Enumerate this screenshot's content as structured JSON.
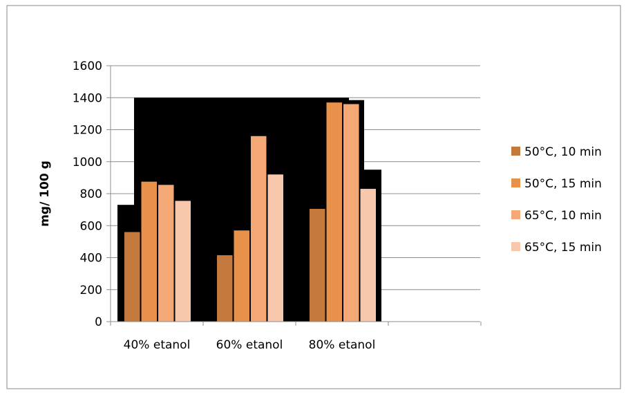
{
  "chart_data": {
    "type": "bar",
    "title": "",
    "xlabel": "",
    "ylabel": "mg/ 100 g",
    "ylim": [
      0,
      1600
    ],
    "ytick_step": 200,
    "yticks": [
      "0",
      "200",
      "400",
      "600",
      "800",
      "1000",
      "1200",
      "1400",
      "1600"
    ],
    "grid": true,
    "legend_position": "right",
    "categories": [
      "40% etanol",
      "60% etanol",
      "80% etanol"
    ],
    "series": [
      {
        "name": "50°C, 10 min",
        "color": "#C47A3C",
        "values": [
          560,
          415,
          705
        ]
      },
      {
        "name": "50°C, 15 min",
        "color": "#E8914A",
        "values": [
          875,
          570,
          1370
        ]
      },
      {
        "name": "65°C, 10 min",
        "color": "#F4A876",
        "values": [
          855,
          1160,
          1360
        ]
      },
      {
        "name": "65°C, 15 min",
        "color": "#F8C8AC",
        "values": [
          755,
          920,
          830
        ]
      }
    ]
  }
}
